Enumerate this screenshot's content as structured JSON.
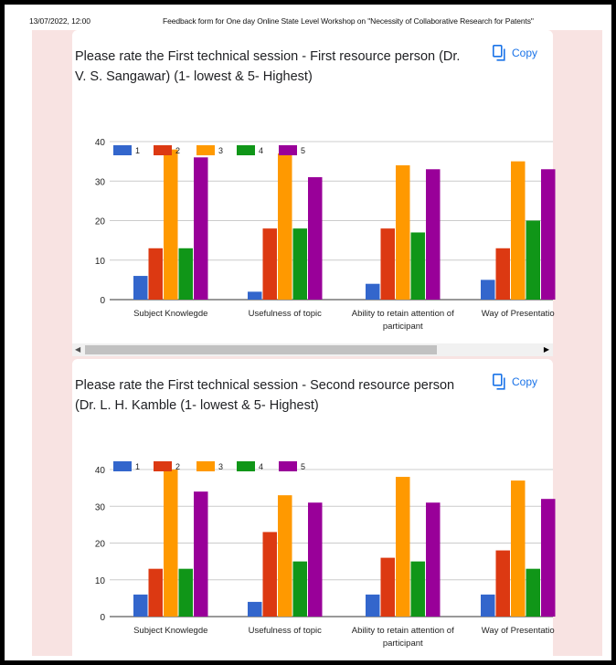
{
  "print_header": {
    "datetime": "13/07/2022, 12:00",
    "title": "Feedback form for One day Online State Level Workshop on \"Necessity of Collaborative Research for Patents\""
  },
  "copy_label": "Copy",
  "colors": {
    "series": [
      "#3366cc",
      "#dc3912",
      "#ff9900",
      "#109618",
      "#990099"
    ],
    "copy_blue": "#1a73e8",
    "page_pink": "#f8e3e2"
  },
  "cards": [
    {
      "question": "Please rate the First technical session - First resource person (Dr. V. S. Sangawar) (1- lowest & 5- Highest)",
      "chart_data": {
        "type": "bar",
        "categories": [
          "Subject Knowlegde",
          "Usefulness of topic",
          "Ability to retain attention of participant",
          "Way of Presentation"
        ],
        "category_lines": [
          [
            "Subject Knowlegde"
          ],
          [
            "Usefulness of topic"
          ],
          [
            "Ability to retain attention of",
            "participant"
          ],
          [
            "Way of Presentatio"
          ]
        ],
        "series": [
          {
            "name": "1",
            "values": [
              6,
              2,
              4,
              5
            ]
          },
          {
            "name": "2",
            "values": [
              13,
              18,
              18,
              13
            ]
          },
          {
            "name": "3",
            "values": [
              38,
              37,
              34,
              35
            ]
          },
          {
            "name": "4",
            "values": [
              13,
              18,
              17,
              20
            ]
          },
          {
            "name": "5",
            "values": [
              36,
              31,
              33,
              33
            ]
          }
        ],
        "yticks": [
          "0",
          "10",
          "20",
          "30",
          "40"
        ],
        "ylim": [
          0,
          40
        ],
        "legend": "top-left"
      }
    },
    {
      "question": "Please rate the First technical session - Second resource person (Dr. L. H. Kamble (1- lowest & 5- Highest)",
      "chart_data": {
        "type": "bar",
        "categories": [
          "Subject Knowlegde",
          "Usefulness of topic",
          "Ability to retain attention of participant",
          "Way of Presentation"
        ],
        "category_lines": [
          [
            "Subject Knowlegde"
          ],
          [
            "Usefulness of topic"
          ],
          [
            "Ability to retain attention of",
            "participant"
          ],
          [
            "Way of Presentatio"
          ]
        ],
        "series": [
          {
            "name": "1",
            "values": [
              6,
              4,
              6,
              6
            ]
          },
          {
            "name": "2",
            "values": [
              13,
              23,
              16,
              18
            ]
          },
          {
            "name": "3",
            "values": [
              40,
              33,
              38,
              37
            ]
          },
          {
            "name": "4",
            "values": [
              13,
              15,
              15,
              13
            ]
          },
          {
            "name": "5",
            "values": [
              34,
              31,
              31,
              32
            ]
          }
        ],
        "yticks": [
          "0",
          "10",
          "20",
          "30",
          "40"
        ],
        "ylim": [
          0,
          40
        ],
        "legend": "top-left"
      }
    }
  ]
}
